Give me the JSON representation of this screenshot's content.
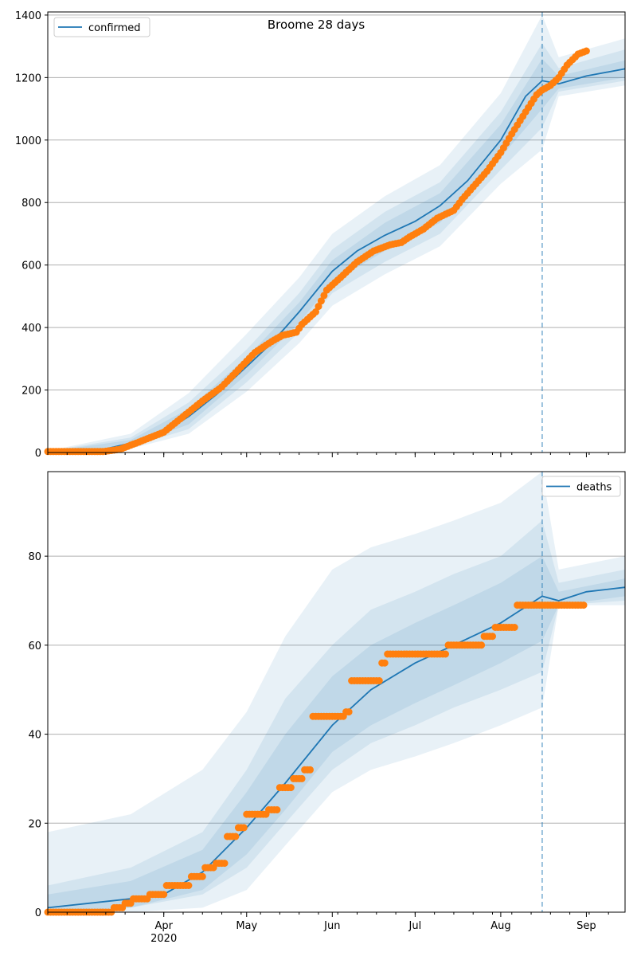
{
  "chart_data": [
    {
      "type": "line",
      "title": "Broome 28 days",
      "legend": {
        "label": "confirmed",
        "placement": "top-left"
      },
      "x_axis": {
        "ticks": [
          "Apr",
          "May",
          "Jun",
          "Jul",
          "Aug",
          "Sep"
        ],
        "year_label": "2020",
        "range": [
          "2020-02-19",
          "2020-09-15"
        ]
      },
      "y_axis": {
        "ticks": [
          "0",
          "200",
          "400",
          "600",
          "800",
          "1000",
          "1200",
          "1400"
        ],
        "range": [
          0,
          1410
        ]
      },
      "grid": "horizontal",
      "vertical_line": "2020-08-16",
      "colors": {
        "median": "#1f77b4",
        "band": "#1f77b4",
        "observed": "#ff7f0e"
      },
      "median": [
        [
          "2020-02-19",
          2
        ],
        [
          "2020-03-01",
          3
        ],
        [
          "2020-03-10",
          10
        ],
        [
          "2020-03-20",
          30
        ],
        [
          "2020-04-01",
          65
        ],
        [
          "2020-04-10",
          115
        ],
        [
          "2020-04-20",
          185
        ],
        [
          "2020-05-01",
          275
        ],
        [
          "2020-05-10",
          350
        ],
        [
          "2020-05-20",
          450
        ],
        [
          "2020-06-01",
          580
        ],
        [
          "2020-06-10",
          645
        ],
        [
          "2020-06-20",
          695
        ],
        [
          "2020-07-01",
          740
        ],
        [
          "2020-07-10",
          790
        ],
        [
          "2020-07-20",
          870
        ],
        [
          "2020-08-01",
          1000
        ],
        [
          "2020-08-10",
          1140
        ],
        [
          "2020-08-16",
          1190
        ],
        [
          "2020-08-22",
          1180
        ],
        [
          "2020-09-01",
          1205
        ],
        [
          "2020-09-15",
          1228
        ]
      ],
      "bands": [
        {
          "upper": [
            [
              "2020-02-19",
              5
            ],
            [
              "2020-03-20",
              60
            ],
            [
              "2020-04-10",
              190
            ],
            [
              "2020-05-01",
              380
            ],
            [
              "2020-05-20",
              560
            ],
            [
              "2020-06-01",
              700
            ],
            [
              "2020-06-20",
              820
            ],
            [
              "2020-07-10",
              920
            ],
            [
              "2020-08-01",
              1150
            ],
            [
              "2020-08-16",
              1400
            ],
            [
              "2020-08-22",
              1265
            ],
            [
              "2020-09-15",
              1325
            ]
          ],
          "lower": [
            [
              "2020-02-19",
              0
            ],
            [
              "2020-03-20",
              12
            ],
            [
              "2020-04-10",
              60
            ],
            [
              "2020-05-01",
              195
            ],
            [
              "2020-05-20",
              350
            ],
            [
              "2020-06-01",
              470
            ],
            [
              "2020-06-20",
              570
            ],
            [
              "2020-07-10",
              660
            ],
            [
              "2020-08-01",
              860
            ],
            [
              "2020-08-16",
              970
            ],
            [
              "2020-08-22",
              1140
            ],
            [
              "2020-09-15",
              1175
            ]
          ]
        },
        {
          "upper": [
            [
              "2020-02-19",
              4
            ],
            [
              "2020-03-20",
              48
            ],
            [
              "2020-04-10",
              160
            ],
            [
              "2020-05-01",
              330
            ],
            [
              "2020-05-20",
              510
            ],
            [
              "2020-06-01",
              650
            ],
            [
              "2020-06-20",
              770
            ],
            [
              "2020-07-10",
              865
            ],
            [
              "2020-08-01",
              1090
            ],
            [
              "2020-08-16",
              1310
            ],
            [
              "2020-08-22",
              1230
            ],
            [
              "2020-09-15",
              1290
            ]
          ],
          "lower": [
            [
              "2020-02-19",
              0
            ],
            [
              "2020-03-20",
              18
            ],
            [
              "2020-04-10",
              75
            ],
            [
              "2020-05-01",
              225
            ],
            [
              "2020-05-20",
              385
            ],
            [
              "2020-06-01",
              510
            ],
            [
              "2020-06-20",
              610
            ],
            [
              "2020-07-10",
              700
            ],
            [
              "2020-08-01",
              905
            ],
            [
              "2020-08-16",
              1040
            ],
            [
              "2020-08-22",
              1155
            ],
            [
              "2020-09-15",
              1190
            ]
          ]
        },
        {
          "upper": [
            [
              "2020-02-19",
              3
            ],
            [
              "2020-03-20",
              40
            ],
            [
              "2020-04-10",
              140
            ],
            [
              "2020-05-01",
              305
            ],
            [
              "2020-05-20",
              480
            ],
            [
              "2020-06-01",
              615
            ],
            [
              "2020-06-20",
              735
            ],
            [
              "2020-07-10",
              830
            ],
            [
              "2020-08-01",
              1050
            ],
            [
              "2020-08-16",
              1260
            ],
            [
              "2020-08-22",
              1205
            ],
            [
              "2020-09-15",
              1255
            ]
          ],
          "lower": [
            [
              "2020-02-19",
              0
            ],
            [
              "2020-03-20",
              22
            ],
            [
              "2020-04-10",
              90
            ],
            [
              "2020-05-01",
              250
            ],
            [
              "2020-05-20",
              415
            ],
            [
              "2020-06-01",
              545
            ],
            [
              "2020-06-20",
              645
            ],
            [
              "2020-07-10",
              735
            ],
            [
              "2020-08-01",
              945
            ],
            [
              "2020-08-16",
              1100
            ],
            [
              "2020-08-22",
              1165
            ],
            [
              "2020-09-15",
              1200
            ]
          ]
        }
      ],
      "observed": [
        [
          "2020-02-19",
          3
        ],
        [
          "2020-03-10",
          3
        ],
        [
          "2020-03-16",
          10
        ],
        [
          "2020-03-22",
          30
        ],
        [
          "2020-04-01",
          65
        ],
        [
          "2020-04-08",
          115
        ],
        [
          "2020-04-15",
          165
        ],
        [
          "2020-04-22",
          210
        ],
        [
          "2020-04-28",
          265
        ],
        [
          "2020-05-04",
          320
        ],
        [
          "2020-05-10",
          355
        ],
        [
          "2020-05-14",
          375
        ],
        [
          "2020-05-19",
          385
        ],
        [
          "2020-05-21",
          410
        ],
        [
          "2020-05-26",
          450
        ],
        [
          "2020-05-30",
          520
        ],
        [
          "2020-06-04",
          560
        ],
        [
          "2020-06-10",
          610
        ],
        [
          "2020-06-16",
          645
        ],
        [
          "2020-06-22",
          665
        ],
        [
          "2020-06-26",
          672
        ],
        [
          "2020-06-29",
          690
        ],
        [
          "2020-07-04",
          715
        ],
        [
          "2020-07-09",
          750
        ],
        [
          "2020-07-15",
          775
        ],
        [
          "2020-07-18",
          810
        ],
        [
          "2020-07-22",
          850
        ],
        [
          "2020-07-27",
          900
        ],
        [
          "2020-08-01",
          960
        ],
        [
          "2020-08-05",
          1020
        ],
        [
          "2020-08-10",
          1090
        ],
        [
          "2020-08-14",
          1145
        ],
        [
          "2020-08-16",
          1160
        ],
        [
          "2020-08-19",
          1175
        ],
        [
          "2020-08-22",
          1200
        ],
        [
          "2020-08-25",
          1240
        ],
        [
          "2020-08-29",
          1275
        ],
        [
          "2020-09-01",
          1285
        ]
      ]
    },
    {
      "type": "line",
      "legend": {
        "label": "deaths",
        "placement": "top-right"
      },
      "x_axis": {
        "ticks": [
          "Apr",
          "May",
          "Jun",
          "Jul",
          "Aug",
          "Sep"
        ],
        "year_label": "2020",
        "range": [
          "2020-02-19",
          "2020-09-15"
        ]
      },
      "y_axis": {
        "ticks": [
          "0",
          "20",
          "40",
          "60",
          "80"
        ],
        "range": [
          0,
          99
        ]
      },
      "grid": "horizontal",
      "vertical_line": "2020-08-16",
      "colors": {
        "median": "#1f77b4",
        "band": "#1f77b4",
        "observed": "#ff7f0e"
      },
      "median": [
        [
          "2020-02-19",
          1
        ],
        [
          "2020-03-05",
          2
        ],
        [
          "2020-03-20",
          3
        ],
        [
          "2020-04-01",
          4
        ],
        [
          "2020-04-15",
          9
        ],
        [
          "2020-05-01",
          19
        ],
        [
          "2020-05-15",
          29
        ],
        [
          "2020-06-01",
          42
        ],
        [
          "2020-06-15",
          50
        ],
        [
          "2020-07-01",
          56
        ],
        [
          "2020-07-15",
          60
        ],
        [
          "2020-08-01",
          65
        ],
        [
          "2020-08-16",
          71
        ],
        [
          "2020-08-22",
          70
        ],
        [
          "2020-09-01",
          72
        ],
        [
          "2020-09-15",
          73
        ]
      ],
      "bands": [
        {
          "upper": [
            [
              "2020-02-19",
              18
            ],
            [
              "2020-03-20",
              22
            ],
            [
              "2020-04-15",
              32
            ],
            [
              "2020-05-01",
              45
            ],
            [
              "2020-05-15",
              62
            ],
            [
              "2020-06-01",
              77
            ],
            [
              "2020-06-15",
              82
            ],
            [
              "2020-07-01",
              85
            ],
            [
              "2020-07-15",
              88
            ],
            [
              "2020-08-01",
              92
            ],
            [
              "2020-08-16",
              99
            ],
            [
              "2020-08-22",
              77
            ],
            [
              "2020-09-15",
              80
            ]
          ],
          "lower": [
            [
              "2020-02-19",
              0
            ],
            [
              "2020-03-20",
              0
            ],
            [
              "2020-04-15",
              1
            ],
            [
              "2020-05-01",
              5
            ],
            [
              "2020-05-15",
              15
            ],
            [
              "2020-06-01",
              27
            ],
            [
              "2020-06-15",
              32
            ],
            [
              "2020-07-01",
              35
            ],
            [
              "2020-07-15",
              38
            ],
            [
              "2020-08-01",
              42
            ],
            [
              "2020-08-16",
              46
            ],
            [
              "2020-08-22",
              69
            ],
            [
              "2020-09-15",
              69
            ]
          ]
        },
        {
          "upper": [
            [
              "2020-02-19",
              6
            ],
            [
              "2020-03-20",
              10
            ],
            [
              "2020-04-15",
              18
            ],
            [
              "2020-05-01",
              32
            ],
            [
              "2020-05-15",
              48
            ],
            [
              "2020-06-01",
              60
            ],
            [
              "2020-06-15",
              68
            ],
            [
              "2020-07-01",
              72
            ],
            [
              "2020-07-15",
              76
            ],
            [
              "2020-08-01",
              80
            ],
            [
              "2020-08-16",
              88
            ],
            [
              "2020-08-22",
              74
            ],
            [
              "2020-09-15",
              77
            ]
          ],
          "lower": [
            [
              "2020-02-19",
              0
            ],
            [
              "2020-03-20",
              1
            ],
            [
              "2020-04-15",
              4
            ],
            [
              "2020-05-01",
              10
            ],
            [
              "2020-05-15",
              20
            ],
            [
              "2020-06-01",
              32
            ],
            [
              "2020-06-15",
              38
            ],
            [
              "2020-07-01",
              42
            ],
            [
              "2020-07-15",
              46
            ],
            [
              "2020-08-01",
              50
            ],
            [
              "2020-08-16",
              54
            ],
            [
              "2020-08-22",
              69
            ],
            [
              "2020-09-15",
              70
            ]
          ]
        },
        {
          "upper": [
            [
              "2020-02-19",
              4
            ],
            [
              "2020-03-20",
              7
            ],
            [
              "2020-04-15",
              14
            ],
            [
              "2020-05-01",
              27
            ],
            [
              "2020-05-15",
              40
            ],
            [
              "2020-06-01",
              53
            ],
            [
              "2020-06-15",
              60
            ],
            [
              "2020-07-01",
              65
            ],
            [
              "2020-07-15",
              69
            ],
            [
              "2020-08-01",
              74
            ],
            [
              "2020-08-16",
              80
            ],
            [
              "2020-08-22",
              72
            ],
            [
              "2020-09-15",
              75
            ]
          ],
          "lower": [
            [
              "2020-02-19",
              0
            ],
            [
              "2020-03-20",
              1
            ],
            [
              "2020-04-15",
              5
            ],
            [
              "2020-05-01",
              13
            ],
            [
              "2020-05-15",
              23
            ],
            [
              "2020-06-01",
              36
            ],
            [
              "2020-06-15",
              42
            ],
            [
              "2020-07-01",
              47
            ],
            [
              "2020-07-15",
              51
            ],
            [
              "2020-08-01",
              56
            ],
            [
              "2020-08-16",
              61
            ],
            [
              "2020-08-22",
              69
            ],
            [
              "2020-09-15",
              71
            ]
          ]
        }
      ],
      "observed": [
        [
          "2020-02-19",
          0
        ],
        [
          "2020-03-14",
          1
        ],
        [
          "2020-03-18",
          2
        ],
        [
          "2020-03-21",
          3
        ],
        [
          "2020-03-27",
          4
        ],
        [
          "2020-04-02",
          6
        ],
        [
          "2020-04-11",
          8
        ],
        [
          "2020-04-16",
          10
        ],
        [
          "2020-04-20",
          11
        ],
        [
          "2020-04-24",
          17
        ],
        [
          "2020-04-28",
          19
        ],
        [
          "2020-05-01",
          22
        ],
        [
          "2020-05-09",
          23
        ],
        [
          "2020-05-13",
          28
        ],
        [
          "2020-05-18",
          30
        ],
        [
          "2020-05-22",
          32
        ],
        [
          "2020-05-25",
          44
        ],
        [
          "2020-06-06",
          45
        ],
        [
          "2020-06-08",
          52
        ],
        [
          "2020-06-19",
          56
        ],
        [
          "2020-06-21",
          58
        ],
        [
          "2020-07-07",
          58
        ],
        [
          "2020-07-13",
          60
        ],
        [
          "2020-07-26",
          62
        ],
        [
          "2020-07-30",
          64
        ],
        [
          "2020-08-07",
          69
        ],
        [
          "2020-08-31",
          69
        ]
      ]
    }
  ]
}
